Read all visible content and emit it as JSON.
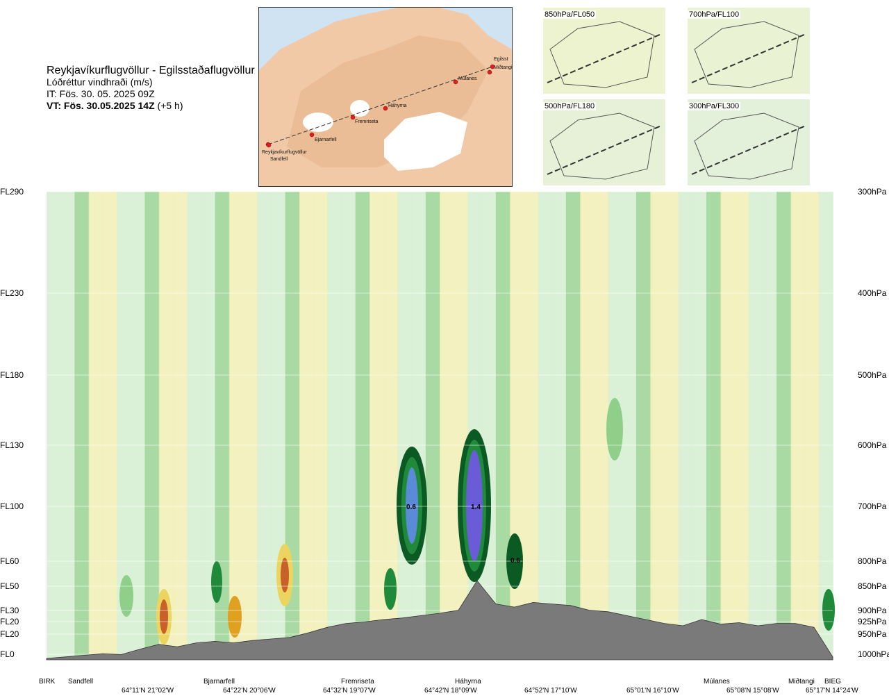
{
  "header": {
    "route": "Reykjavíkurflugvöllur - Egilsstaðaflugvöllur",
    "quantity": "Lóðréttur vindhraði (m/s)",
    "issue_time": "IT: Fös. 30. 05. 2025 09Z",
    "valid_time_bold": "VT: Fös. 30.05.2025 14Z",
    "valid_offset": " (+5 h)"
  },
  "map": {
    "waypoints": [
      "Reykjavíkurflugvöllur",
      "Sandfell",
      "Bjarnarfell",
      "Fremriseta",
      "Háhyrna",
      "Múlanes",
      "Miðtangi",
      "Egilsst"
    ]
  },
  "mini_maps": [
    {
      "label": "850hPa/FL050"
    },
    {
      "label": "700hPa/FL100"
    },
    {
      "label": "500hPa/FL180"
    },
    {
      "label": "300hPa/FL300"
    }
  ],
  "colors": {
    "terrain": "#7a7a7a",
    "up_light": "#d6efd3",
    "up_mid": "#8fcf8a",
    "up_strong": "#1f8a3a",
    "up_dark": "#0b5a23",
    "up_blue": "#5b8bd6",
    "up_violet": "#6a5bd6",
    "down_light": "#f7f0b0",
    "down_mid": "#ecd460",
    "down_strong": "#e0a020",
    "down_dark": "#c8602a"
  },
  "chart_data": {
    "type": "heatmap",
    "title": "Lóðréttur vindhraði (m/s)",
    "xlabel": "",
    "ylabel": "",
    "flight_levels": [
      "FL290",
      "FL230",
      "FL180",
      "FL130",
      "FL100",
      "FL60",
      "FL50",
      "FL30",
      "FL20",
      "FL20",
      "FL0"
    ],
    "pressure_levels": [
      "300hPa",
      "400hPa",
      "500hPa",
      "600hPa",
      "700hPa",
      "800hPa",
      "850hPa",
      "900hPa",
      "925hPa",
      "950hPa",
      "1000hPa"
    ],
    "stations": [
      "BIRK",
      "Sandfell",
      "Bjarnarfell",
      "Fremriseta",
      "Háhyrna",
      "Múlanes",
      "Miðtangi",
      "BIEG"
    ],
    "coordinates": [
      "64°11'N 21°02'W",
      "64°22'N 20°06'W",
      "64°32'N 19°07'W",
      "64°42'N 18°09'W",
      "64°52'N 17°10'W",
      "65°01'N 16°10'W",
      "65°08'N 15°08'W",
      "65°17'N 14°24'W"
    ],
    "max_labels": [
      "0.6",
      "1.4",
      "0.6"
    ],
    "terrain_profile": [
      0.0,
      0.02,
      0.04,
      0.06,
      0.05,
      0.12,
      0.18,
      0.15,
      0.2,
      0.22,
      0.2,
      0.23,
      0.25,
      0.27,
      0.33,
      0.4,
      0.45,
      0.47,
      0.5,
      0.52,
      0.55,
      0.58,
      0.62,
      1.0,
      0.7,
      0.66,
      0.72,
      0.7,
      0.68,
      0.62,
      0.6,
      0.55,
      0.5,
      0.45,
      0.42,
      0.5,
      0.44,
      0.46,
      0.42,
      0.45,
      0.45,
      0.4,
      0.02
    ]
  }
}
